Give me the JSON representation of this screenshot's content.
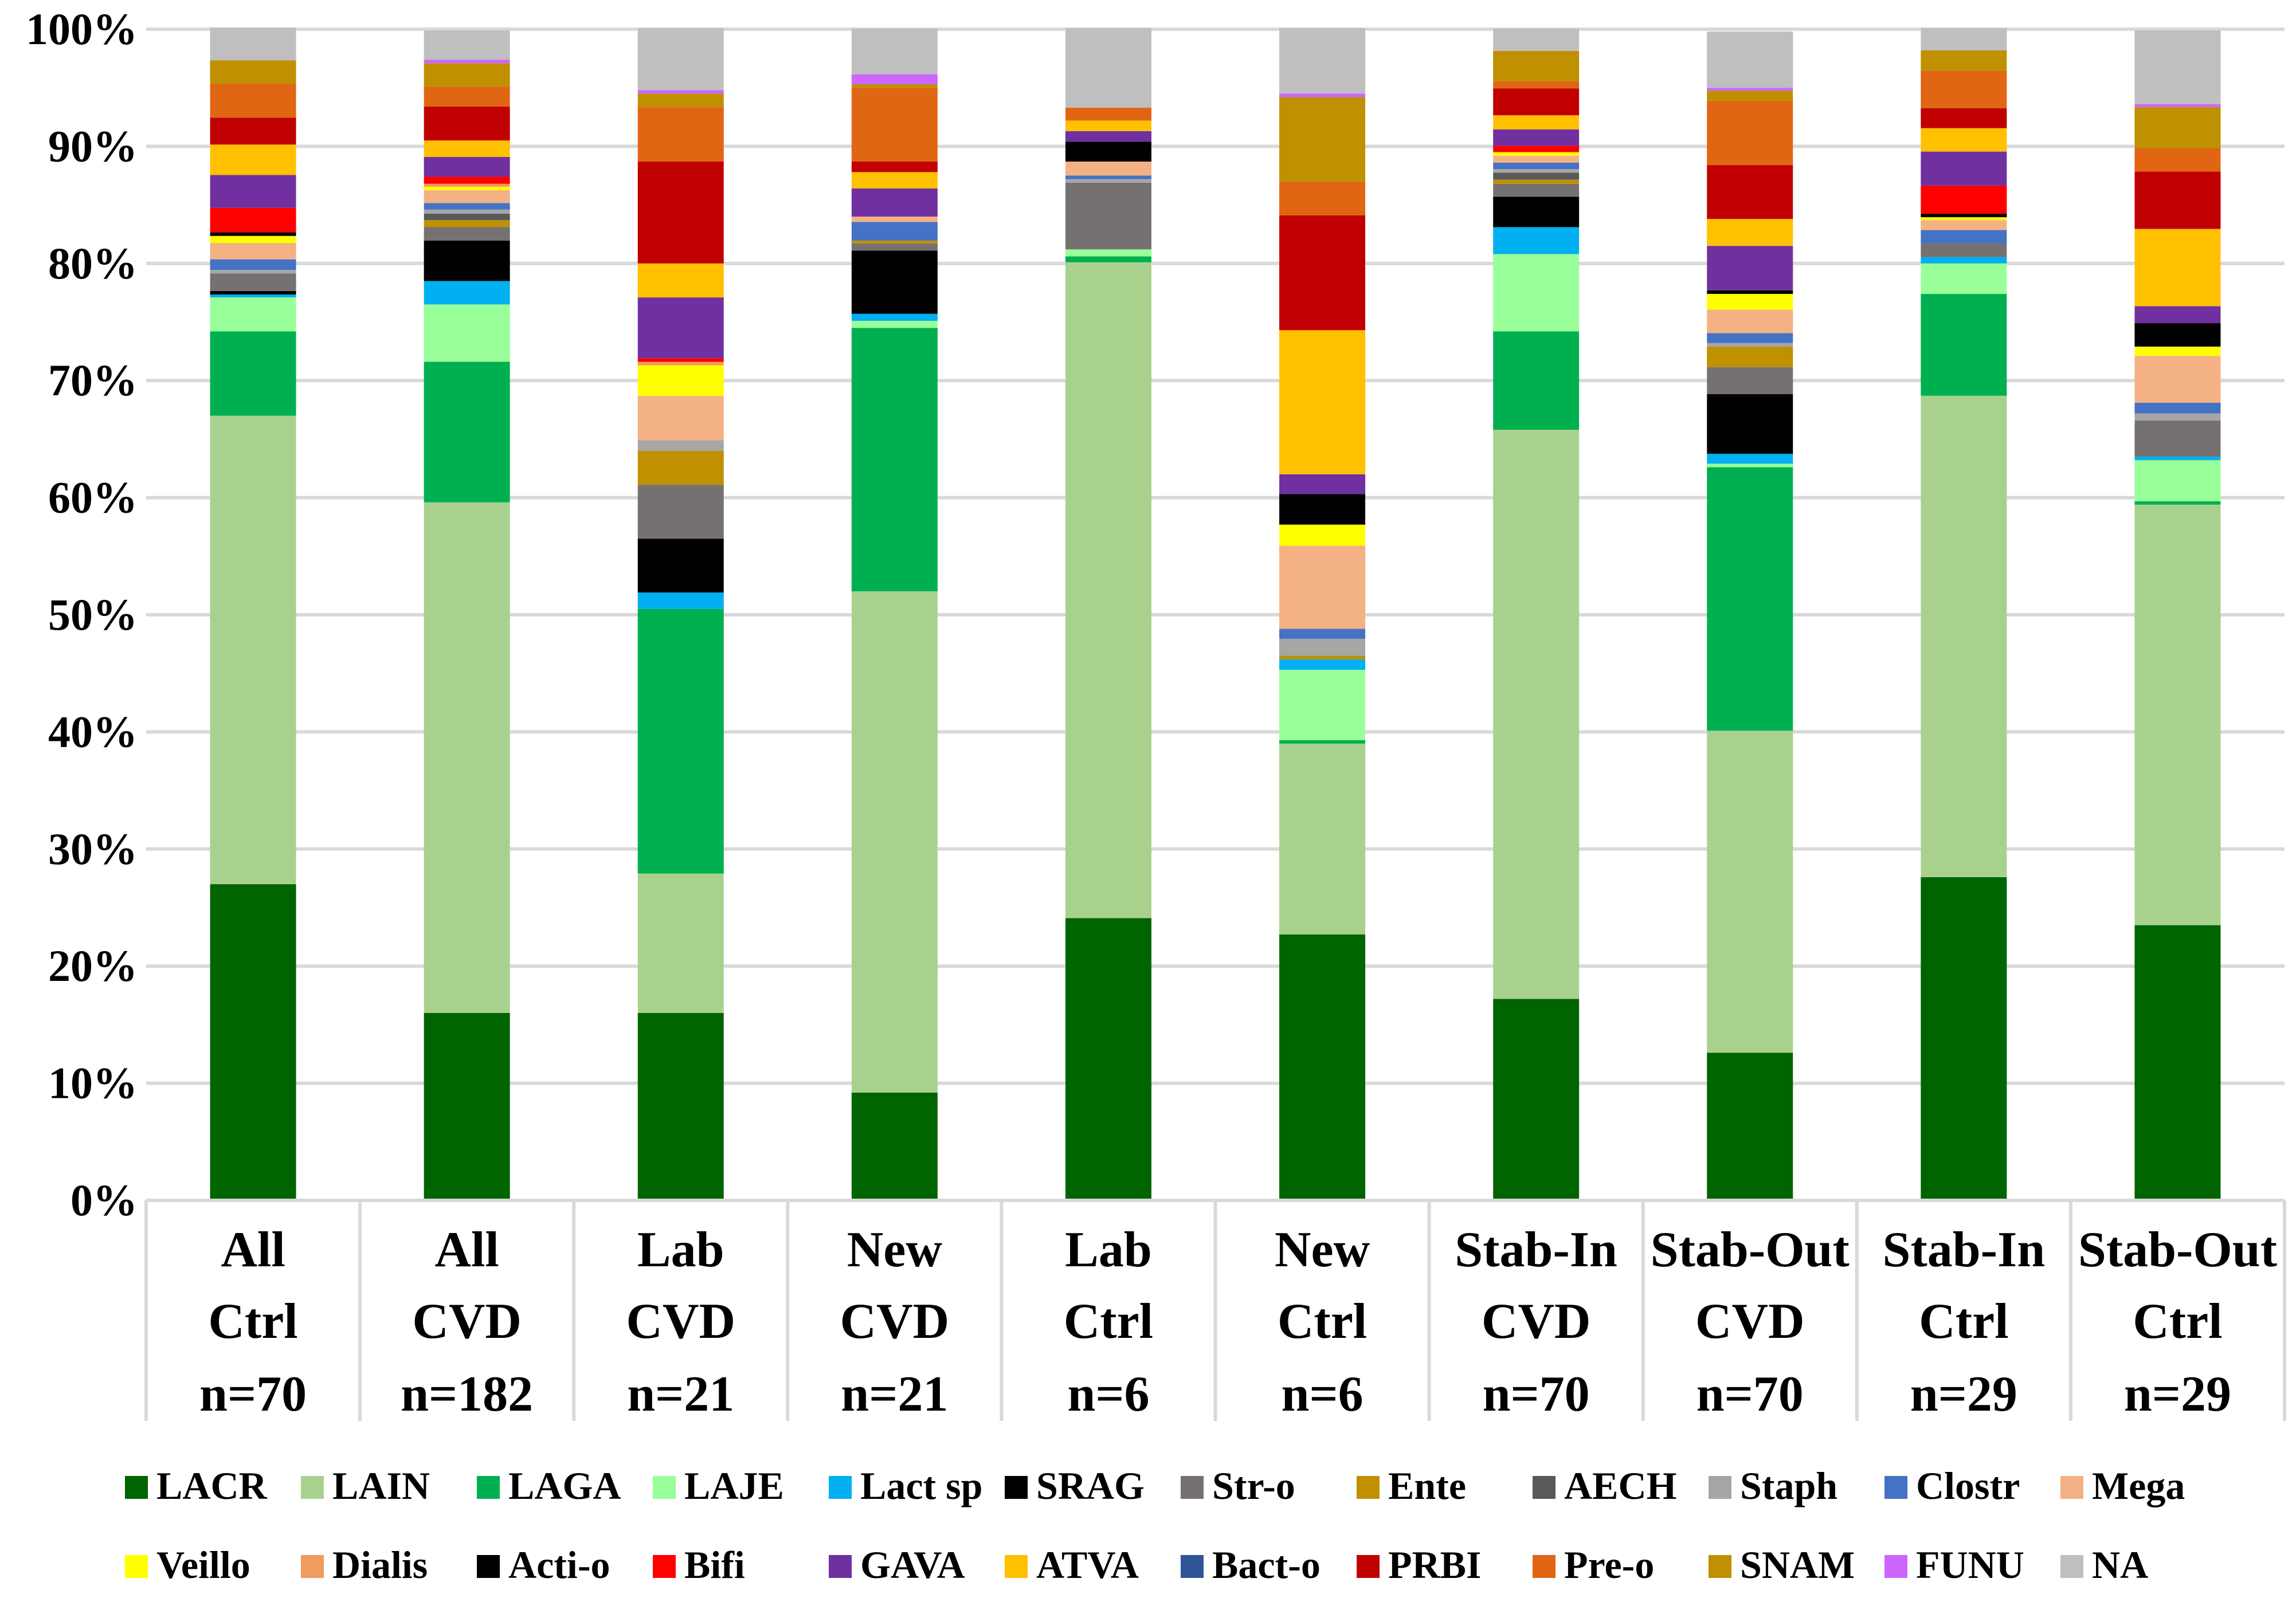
{
  "chart_data": {
    "type": "bar",
    "stacked": true,
    "title": "",
    "xlabel": "",
    "ylabel": "",
    "ylim": [
      0,
      100
    ],
    "y_ticks": [
      "0%",
      "10%",
      "20%",
      "30%",
      "40%",
      "50%",
      "60%",
      "70%",
      "80%",
      "90%",
      "100%"
    ],
    "grid": true,
    "legend_position": "bottom",
    "categories": [
      {
        "lines": [
          "All",
          "Ctrl",
          "n=70"
        ]
      },
      {
        "lines": [
          "All",
          "CVD",
          "n=182"
        ]
      },
      {
        "lines": [
          "Lab",
          "CVD",
          "n=21"
        ]
      },
      {
        "lines": [
          "New",
          "CVD",
          "n=21"
        ]
      },
      {
        "lines": [
          "Lab",
          "Ctrl",
          "n=6"
        ]
      },
      {
        "lines": [
          "New",
          "Ctrl",
          "n=6"
        ]
      },
      {
        "lines": [
          "Stab-In",
          "CVD",
          "n=70"
        ]
      },
      {
        "lines": [
          "Stab-Out",
          "CVD",
          "n=70"
        ]
      },
      {
        "lines": [
          "Stab-In",
          "Ctrl",
          "n=29"
        ]
      },
      {
        "lines": [
          "Stab-Out",
          "Ctrl",
          "n=29"
        ]
      }
    ],
    "series": [
      {
        "name": "LACR",
        "color": "#006400",
        "values": [
          27.0,
          16.0,
          16.0,
          9.2,
          24.1,
          22.7,
          17.2,
          12.6,
          27.6,
          23.5
        ]
      },
      {
        "name": "LAIN",
        "color": "#A9D18E",
        "values": [
          40.0,
          43.6,
          11.9,
          42.8,
          56.0,
          16.3,
          48.6,
          27.5,
          41.1,
          35.9
        ]
      },
      {
        "name": "LAGA",
        "color": "#00B050",
        "values": [
          7.2,
          12.0,
          22.6,
          22.5,
          0.5,
          0.3,
          8.4,
          22.5,
          8.7,
          0.3
        ]
      },
      {
        "name": "LAJE",
        "color": "#99FF99",
        "values": [
          2.9,
          4.9,
          0,
          0.6,
          0.6,
          6.0,
          6.6,
          0.3,
          2.6,
          3.5
        ]
      },
      {
        "name": "Lact sp",
        "color": "#00B0F0",
        "values": [
          0.25,
          2.0,
          1.4,
          0.6,
          0,
          0.9,
          2.3,
          0.85,
          0.55,
          0.3
        ]
      },
      {
        "name": "SRAG",
        "color": "#000000",
        "values": [
          0.3,
          3.45,
          4.6,
          5.4,
          0,
          0,
          2.6,
          5.1,
          0,
          0
        ]
      },
      {
        "name": "Str-o",
        "color": "#767171",
        "values": [
          1.5,
          1.15,
          4.6,
          0.6,
          5.7,
          0,
          1.1,
          2.3,
          1.15,
          3.1
        ]
      },
      {
        "name": "Ente",
        "color": "#BF9000",
        "values": [
          0,
          0.6,
          2.9,
          0.25,
          0,
          0.3,
          0.35,
          1.75,
          0,
          0
        ]
      },
      {
        "name": "AECH",
        "color": "#595959",
        "values": [
          0,
          0.55,
          0,
          0,
          0,
          0,
          0.6,
          0,
          0,
          0
        ]
      },
      {
        "name": "Staph",
        "color": "#A6A6A6",
        "values": [
          0.3,
          0.35,
          0.9,
          0,
          0.3,
          1.45,
          0.3,
          0.3,
          0,
          0.6
        ]
      },
      {
        "name": "Clostr",
        "color": "#4472C4",
        "values": [
          0.9,
          0.55,
          0,
          1.6,
          0.3,
          0.85,
          0.55,
          0.85,
          1.15,
          0.9
        ]
      },
      {
        "name": "Mega",
        "color": "#F4B183",
        "values": [
          1.4,
          1.1,
          3.8,
          0.45,
          1.2,
          7.1,
          0.6,
          2.0,
          0.85,
          4.0
        ]
      },
      {
        "name": "Veillo",
        "color": "#FFFF00",
        "values": [
          0.6,
          0.3,
          2.6,
          0,
          0,
          1.8,
          0.3,
          1.35,
          0.25,
          0.8
        ]
      },
      {
        "name": "Dialis",
        "color": "#F19B5E",
        "values": [
          0,
          0.25,
          0.3,
          0,
          0,
          0,
          0,
          0,
          0,
          0
        ]
      },
      {
        "name": "Acti-o",
        "color": "#000000",
        "values": [
          0.3,
          0,
          0,
          0,
          1.7,
          2.6,
          0,
          0.3,
          0.3,
          2.0
        ]
      },
      {
        "name": "Bifi",
        "color": "#FF0000",
        "values": [
          2.1,
          0.6,
          0.3,
          0,
          0,
          0,
          0.55,
          0,
          2.4,
          0
        ]
      },
      {
        "name": "GAVA",
        "color": "#7030A0",
        "values": [
          2.8,
          1.7,
          5.2,
          2.4,
          0.9,
          1.7,
          1.4,
          3.8,
          2.9,
          1.45
        ]
      },
      {
        "name": "ATVA",
        "color": "#FFC000",
        "values": [
          2.6,
          1.4,
          2.9,
          1.4,
          0.9,
          12.3,
          1.2,
          2.3,
          2.0,
          6.6
        ]
      },
      {
        "name": "Bact-o",
        "color": "#2F5597",
        "values": [
          0,
          0,
          0,
          0,
          0,
          0,
          0,
          0,
          0,
          0
        ]
      },
      {
        "name": "PRBI",
        "color": "#C00000",
        "values": [
          2.3,
          2.9,
          8.7,
          0.9,
          0,
          9.8,
          2.3,
          4.6,
          1.7,
          4.9
        ]
      },
      {
        "name": "Pre-o",
        "color": "#E06614",
        "values": [
          2.9,
          1.7,
          4.6,
          6.3,
          1.1,
          2.9,
          0.6,
          5.5,
          3.2,
          2.0
        ]
      },
      {
        "name": "SNAM",
        "color": "#BF9000",
        "values": [
          2.0,
          2.0,
          1.2,
          0.3,
          0,
          7.2,
          2.6,
          0.85,
          1.75,
          3.5
        ]
      },
      {
        "name": "FUNU",
        "color": "#CC66FF",
        "values": [
          0,
          0.3,
          0.3,
          0.85,
          0,
          0.3,
          0,
          0.25,
          0,
          0.25
        ]
      },
      {
        "name": "NA",
        "color": "#BFBFBF",
        "values": [
          2.8,
          2.5,
          5.3,
          3.9,
          6.8,
          5.6,
          1.9,
          4.8,
          1.9,
          6.3
        ]
      }
    ]
  }
}
